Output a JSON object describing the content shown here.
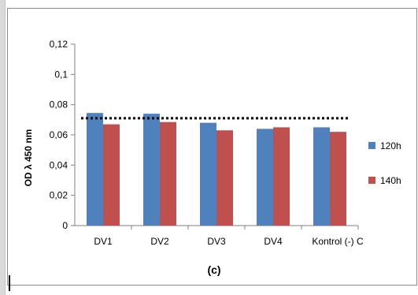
{
  "chart_data": {
    "type": "bar",
    "ylabel": "OD  λ 450 nm",
    "xlabel": "",
    "caption": "(c)",
    "categories": [
      "DV1",
      "DV2",
      "DV3",
      "DV4",
      "Kontrol (-) C"
    ],
    "series": [
      {
        "name": "120h",
        "color": "#4f81bd",
        "values": [
          0.0745,
          0.074,
          0.068,
          0.064,
          0.065
        ]
      },
      {
        "name": "140h",
        "color": "#c0504d",
        "values": [
          0.067,
          0.0685,
          0.063,
          0.065,
          0.062
        ]
      }
    ],
    "ylim": [
      0,
      0.12
    ],
    "yticks": [
      0,
      0.02,
      0.04,
      0.06,
      0.08,
      0.1,
      0.12
    ],
    "ytick_labels": [
      "0",
      "0,02",
      "0,04",
      "0,06",
      "0,08",
      "0,1",
      "0,12"
    ],
    "reference_line": {
      "value": 0.071,
      "style": "dotted",
      "color": "#000000"
    },
    "grid": false,
    "legend": "right"
  }
}
